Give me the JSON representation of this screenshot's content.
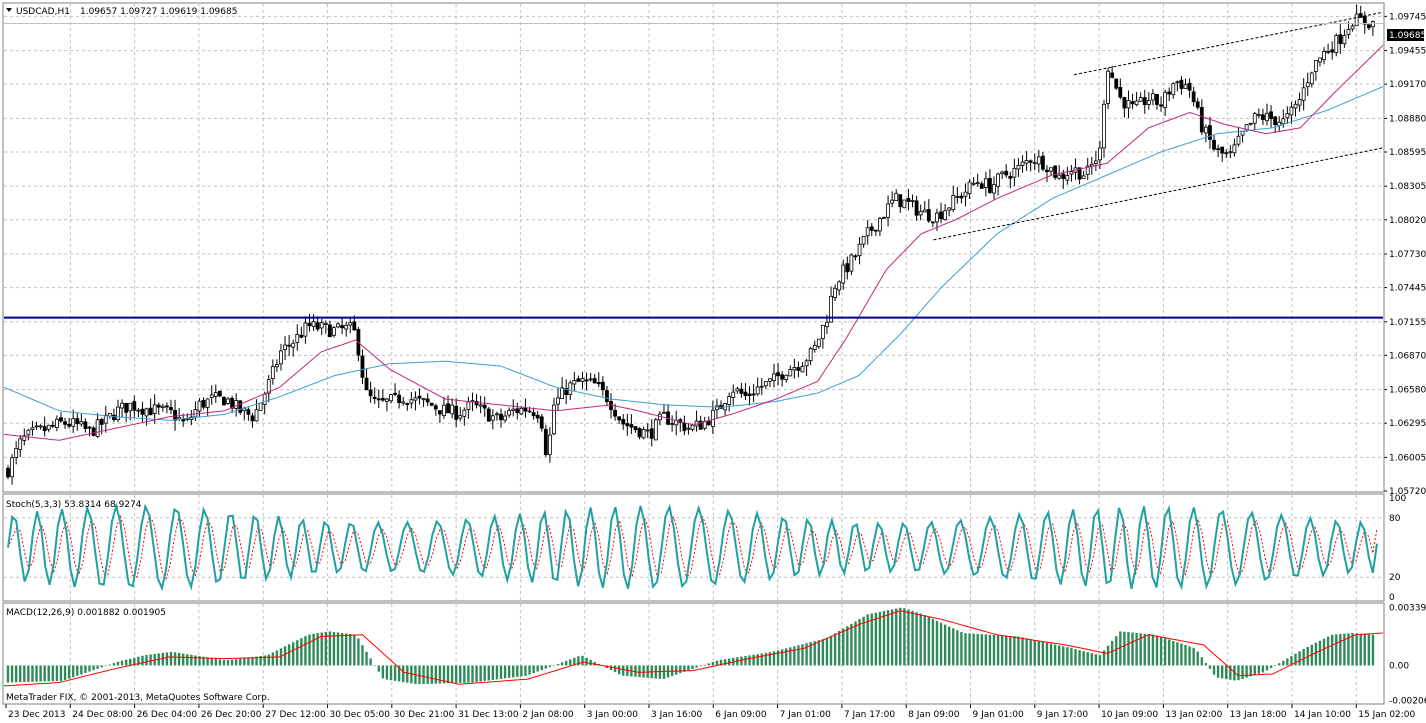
{
  "header": {
    "symbol": "USDCAD,H1",
    "ohlc": "1.09657 1.09727 1.09619 1.09685"
  },
  "footer": {
    "copyright": "MetaTrader FIX, © 2001-2013, MetaQuotes Software Corp."
  },
  "colors": {
    "background": "#ffffff",
    "grid": "#c0c0c0",
    "candle_bull": "#ffffff",
    "candle_bear": "#000000",
    "ma_fast": "#c0287a",
    "ma_slow": "#3aa0d8",
    "hline": "#00008b",
    "stoch_main": "#20a0a0",
    "stoch_signal": "#ff0000",
    "macd_hist": "#2e8b57",
    "macd_signal": "#ff0000"
  },
  "chart_data": [
    {
      "type": "candlestick",
      "title": "USDCAD,H1",
      "price_current": "1.09685",
      "ylim": [
        1.0572,
        1.0985
      ],
      "y_ticks": [
        "1.09745",
        "1.09455",
        "1.09170",
        "1.08880",
        "1.08595",
        "1.08305",
        "1.08020",
        "1.07730",
        "1.07445",
        "1.07155",
        "1.06870",
        "1.06580",
        "1.06295",
        "1.06005",
        "1.05720"
      ],
      "x_ticks": [
        "23 Dec 2013",
        "24 Dec 08:00",
        "26 Dec 04:00",
        "26 Dec 20:00",
        "27 Dec 12:00",
        "30 Dec 05:00",
        "30 Dec 21:00",
        "31 Dec 13:00",
        "2 Jan 08:00",
        "3 Jan 00:00",
        "3 Jan 16:00",
        "6 Jan 09:00",
        "7 Jan 01:00",
        "7 Jan 17:00",
        "8 Jan 09:00",
        "9 Jan 01:00",
        "9 Jan 17:00",
        "10 Jan 09:00",
        "13 Jan 02:00",
        "13 Jan 18:00",
        "14 Jan 10:00",
        "15 Jan 02:00"
      ],
      "horizontal_line": 1.0719,
      "channel_upper": [
        [
          0.776,
          1.0925
        ],
        [
          1.0,
          1.0978
        ]
      ],
      "channel_lower": [
        [
          0.674,
          1.0785
        ],
        [
          1.0,
          1.0863
        ]
      ],
      "close_path": [
        [
          0.0,
          1.059
        ],
        [
          0.01,
          1.0615
        ],
        [
          0.02,
          1.0622
        ],
        [
          0.03,
          1.0625
        ],
        [
          0.04,
          1.063
        ],
        [
          0.05,
          1.0628
        ],
        [
          0.06,
          1.0622
        ],
        [
          0.07,
          1.063
        ],
        [
          0.08,
          1.064
        ],
        [
          0.09,
          1.0645
        ],
        [
          0.1,
          1.0642
        ],
        [
          0.11,
          1.064
        ],
        [
          0.12,
          1.0638
        ],
        [
          0.13,
          1.0628
        ],
        [
          0.14,
          1.0645
        ],
        [
          0.15,
          1.065
        ],
        [
          0.16,
          1.065
        ],
        [
          0.17,
          1.064
        ],
        [
          0.18,
          1.0635
        ],
        [
          0.19,
          1.066
        ],
        [
          0.2,
          1.069
        ],
        [
          0.21,
          1.07
        ],
        [
          0.22,
          1.0712
        ],
        [
          0.23,
          1.071
        ],
        [
          0.24,
          1.0708
        ],
        [
          0.25,
          1.071
        ],
        [
          0.255,
          1.0705
        ],
        [
          0.262,
          1.0655
        ],
        [
          0.27,
          1.0645
        ],
        [
          0.28,
          1.0648
        ],
        [
          0.29,
          1.0652
        ],
        [
          0.3,
          1.0648
        ],
        [
          0.31,
          1.0645
        ],
        [
          0.32,
          1.064
        ],
        [
          0.33,
          1.0638
        ],
        [
          0.34,
          1.0645
        ],
        [
          0.35,
          1.0638
        ],
        [
          0.36,
          1.0632
        ],
        [
          0.37,
          1.064
        ],
        [
          0.38,
          1.0642
        ],
        [
          0.39,
          1.0638
        ],
        [
          0.395,
          1.06
        ],
        [
          0.4,
          1.0645
        ],
        [
          0.41,
          1.066
        ],
        [
          0.42,
          1.0665
        ],
        [
          0.43,
          1.0662
        ],
        [
          0.44,
          1.065
        ],
        [
          0.45,
          1.063
        ],
        [
          0.46,
          1.0625
        ],
        [
          0.47,
          1.062
        ],
        [
          0.48,
          1.0635
        ],
        [
          0.49,
          1.063
        ],
        [
          0.5,
          1.0625
        ],
        [
          0.51,
          1.063
        ],
        [
          0.52,
          1.064
        ],
        [
          0.53,
          1.066
        ],
        [
          0.54,
          1.0652
        ],
        [
          0.55,
          1.066
        ],
        [
          0.56,
          1.0665
        ],
        [
          0.57,
          1.0675
        ],
        [
          0.58,
          1.068
        ],
        [
          0.59,
          1.069
        ],
        [
          0.6,
          1.072
        ],
        [
          0.605,
          1.0745
        ],
        [
          0.61,
          1.0755
        ],
        [
          0.62,
          1.077
        ],
        [
          0.63,
          1.079
        ],
        [
          0.64,
          1.0805
        ],
        [
          0.65,
          1.082
        ],
        [
          0.66,
          1.0815
        ],
        [
          0.67,
          1.0808
        ],
        [
          0.68,
          1.0805
        ],
        [
          0.69,
          1.0815
        ],
        [
          0.7,
          1.0825
        ],
        [
          0.71,
          1.0835
        ],
        [
          0.72,
          1.083
        ],
        [
          0.73,
          1.084
        ],
        [
          0.74,
          1.0845
        ],
        [
          0.75,
          1.0855
        ],
        [
          0.76,
          1.085
        ],
        [
          0.77,
          1.0838
        ],
        [
          0.78,
          1.0845
        ],
        [
          0.79,
          1.084
        ],
        [
          0.8,
          1.086
        ],
        [
          0.805,
          1.0935
        ],
        [
          0.815,
          1.0905
        ],
        [
          0.825,
          1.0895
        ],
        [
          0.835,
          1.0905
        ],
        [
          0.845,
          1.09
        ],
        [
          0.855,
          1.092
        ],
        [
          0.865,
          1.0915
        ],
        [
          0.875,
          1.088
        ],
        [
          0.885,
          1.086
        ],
        [
          0.895,
          1.0855
        ],
        [
          0.905,
          1.0875
        ],
        [
          0.915,
          1.089
        ],
        [
          0.925,
          1.0888
        ],
        [
          0.935,
          1.0885
        ],
        [
          0.945,
          1.09
        ],
        [
          0.955,
          1.093
        ],
        [
          0.965,
          1.0945
        ],
        [
          0.975,
          1.0955
        ],
        [
          0.985,
          1.0972
        ],
        [
          1.0,
          1.09685
        ]
      ],
      "ma_fast_path": [
        [
          0.0,
          1.062
        ],
        [
          0.04,
          1.0615
        ],
        [
          0.08,
          1.0625
        ],
        [
          0.12,
          1.0635
        ],
        [
          0.16,
          1.064
        ],
        [
          0.2,
          1.066
        ],
        [
          0.23,
          1.069
        ],
        [
          0.255,
          1.07
        ],
        [
          0.28,
          1.0675
        ],
        [
          0.32,
          1.065
        ],
        [
          0.36,
          1.0645
        ],
        [
          0.4,
          1.064
        ],
        [
          0.44,
          1.0645
        ],
        [
          0.46,
          1.064
        ],
        [
          0.5,
          1.0628
        ],
        [
          0.53,
          1.0638
        ],
        [
          0.56,
          1.065
        ],
        [
          0.59,
          1.0665
        ],
        [
          0.61,
          1.07
        ],
        [
          0.64,
          1.076
        ],
        [
          0.665,
          1.079
        ],
        [
          0.69,
          1.0802
        ],
        [
          0.72,
          1.082
        ],
        [
          0.76,
          1.084
        ],
        [
          0.8,
          1.085
        ],
        [
          0.83,
          1.088
        ],
        [
          0.86,
          1.0893
        ],
        [
          0.885,
          1.0883
        ],
        [
          0.915,
          1.0875
        ],
        [
          0.94,
          1.088
        ],
        [
          0.965,
          1.091
        ],
        [
          1.0,
          1.095
        ]
      ],
      "ma_slow_path": [
        [
          0.0,
          1.066
        ],
        [
          0.04,
          1.064
        ],
        [
          0.08,
          1.0635
        ],
        [
          0.12,
          1.0632
        ],
        [
          0.16,
          1.0637
        ],
        [
          0.2,
          1.0652
        ],
        [
          0.24,
          1.067
        ],
        [
          0.28,
          1.068
        ],
        [
          0.32,
          1.0682
        ],
        [
          0.36,
          1.0678
        ],
        [
          0.4,
          1.066
        ],
        [
          0.44,
          1.065
        ],
        [
          0.48,
          1.0645
        ],
        [
          0.52,
          1.0643
        ],
        [
          0.56,
          1.0648
        ],
        [
          0.59,
          1.0655
        ],
        [
          0.62,
          1.067
        ],
        [
          0.65,
          1.0705
        ],
        [
          0.68,
          1.0745
        ],
        [
          0.72,
          1.079
        ],
        [
          0.76,
          1.082
        ],
        [
          0.8,
          1.084
        ],
        [
          0.84,
          1.086
        ],
        [
          0.88,
          1.0875
        ],
        [
          0.92,
          1.088
        ],
        [
          0.96,
          1.0895
        ],
        [
          1.0,
          1.0915
        ]
      ]
    },
    {
      "type": "line",
      "title": "Stoch(5,3,3) 53.8314 68.9274",
      "ylim": [
        0,
        100
      ],
      "y_ticks": [
        "100",
        "80",
        "20",
        "0"
      ],
      "main_value": 53.8314,
      "signal_value": 68.9274
    },
    {
      "type": "bar",
      "title": "MACD(12,26,9) 0.001882 0.001905",
      "ylim": [
        -0.0022,
        0.0036
      ],
      "y_ticks": [
        "0.003392",
        "0.00",
        "-0.002063"
      ],
      "macd_value": 0.001882,
      "signal_value": 0.001905,
      "macd_path": [
        [
          0.0,
          -0.001
        ],
        [
          0.04,
          -0.0009
        ],
        [
          0.08,
          0.0002
        ],
        [
          0.1,
          0.0006
        ],
        [
          0.12,
          0.0008
        ],
        [
          0.16,
          0.0003
        ],
        [
          0.19,
          0.0006
        ],
        [
          0.22,
          0.0018
        ],
        [
          0.235,
          0.002
        ],
        [
          0.255,
          0.0018
        ],
        [
          0.275,
          -0.0008
        ],
        [
          0.3,
          -0.0011
        ],
        [
          0.34,
          -0.001
        ],
        [
          0.38,
          -0.0006
        ],
        [
          0.42,
          0.0006
        ],
        [
          0.45,
          -0.0006
        ],
        [
          0.48,
          -0.0008
        ],
        [
          0.52,
          0.0003
        ],
        [
          0.56,
          0.0008
        ],
        [
          0.6,
          0.0016
        ],
        [
          0.63,
          0.003
        ],
        [
          0.655,
          0.0034
        ],
        [
          0.67,
          0.003
        ],
        [
          0.7,
          0.0019
        ],
        [
          0.74,
          0.0017
        ],
        [
          0.78,
          0.001
        ],
        [
          0.8,
          0.0006
        ],
        [
          0.815,
          0.002
        ],
        [
          0.84,
          0.0018
        ],
        [
          0.87,
          0.001
        ],
        [
          0.885,
          -0.0007
        ],
        [
          0.9,
          -0.0009
        ],
        [
          0.92,
          -0.0004
        ],
        [
          0.95,
          0.001
        ],
        [
          0.97,
          0.0018
        ],
        [
          0.985,
          0.0019
        ],
        [
          1.0,
          0.0018
        ]
      ],
      "signal_path": [
        [
          0.0,
          -0.0012
        ],
        [
          0.04,
          -0.001
        ],
        [
          0.08,
          -0.0002
        ],
        [
          0.12,
          0.0005
        ],
        [
          0.16,
          0.0004
        ],
        [
          0.2,
          0.0005
        ],
        [
          0.23,
          0.0017
        ],
        [
          0.26,
          0.0018
        ],
        [
          0.29,
          -0.0004
        ],
        [
          0.33,
          -0.0011
        ],
        [
          0.38,
          -0.0008
        ],
        [
          0.42,
          0.0002
        ],
        [
          0.46,
          -0.0004
        ],
        [
          0.5,
          -0.0003
        ],
        [
          0.54,
          0.0004
        ],
        [
          0.58,
          0.001
        ],
        [
          0.62,
          0.0024
        ],
        [
          0.65,
          0.0032
        ],
        [
          0.68,
          0.0027
        ],
        [
          0.72,
          0.0018
        ],
        [
          0.77,
          0.0012
        ],
        [
          0.8,
          0.0007
        ],
        [
          0.83,
          0.0018
        ],
        [
          0.87,
          0.0012
        ],
        [
          0.895,
          -0.0006
        ],
        [
          0.92,
          -0.0005
        ],
        [
          0.95,
          0.0007
        ],
        [
          0.98,
          0.0018
        ],
        [
          1.0,
          0.0019
        ]
      ]
    }
  ]
}
